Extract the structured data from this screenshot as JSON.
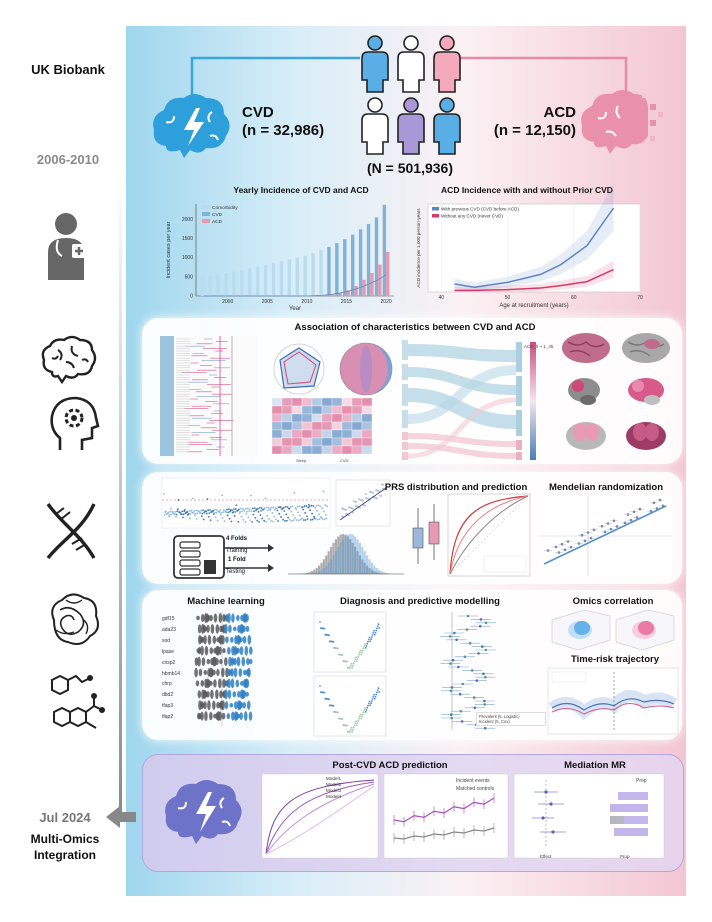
{
  "left_labels": {
    "source": "UK Biobank",
    "period_start": "2006-2010",
    "period_end": "Jul 2024",
    "integration": "Multi-Omics\nIntegration"
  },
  "cohort": {
    "cvd_label": "CVD",
    "cvd_n": "(n = 32,986)",
    "acd_label": "ACD",
    "acd_n": "(n = 12,150)",
    "total_n": "(N = 501,936)"
  },
  "panel_titles": {
    "yearly_incidence": "Yearly Incidence of CVD and ACD",
    "acd_incidence": "ACD Incidence with and without Prior CVD",
    "association": "Association of characteristics  between CVD and ACD",
    "prs": "PRS distribution and prediction",
    "mr": "Mendelian randomization",
    "ml": "Machine learning",
    "diagnosis": "Diagnosis and predictive modelling",
    "omics": "Omics correlation",
    "time_risk": "Time-risk trajectory",
    "post_cvd": "Post-CVD ACD prediction",
    "mediation": "Mediation MR"
  },
  "kfold": {
    "train_label": "4 Folds",
    "train_sub": "Training",
    "test_label": "1 Fold",
    "test_sub": "Testing"
  },
  "colors": {
    "cvd": "#7fb3d8",
    "acd": "#e69ab0",
    "comorbidity": "#b9dcef",
    "blue_line": "#5d86c8",
    "red_line": "#d63b6c",
    "purple": "#9b8dd0"
  },
  "chart_data": [
    {
      "type": "bar",
      "title": "Yearly Incidence of CVD and ACD",
      "xlabel": "Year",
      "ylabel": "Incident cases per year",
      "x_ticks": [
        "2000",
        "2005",
        "2010",
        "2015",
        "2020"
      ],
      "y_ticks": [
        "0",
        "500",
        "1000",
        "1500",
        "2000"
      ],
      "ylim": [
        0,
        2400
      ],
      "legend": [
        "Comorbidity",
        "CVD",
        "ACD"
      ],
      "legend_position": "top-left",
      "x": [
        1997,
        1998,
        1999,
        2000,
        2001,
        2002,
        2003,
        2004,
        2005,
        2006,
        2007,
        2008,
        2009,
        2010,
        2011,
        2012,
        2013,
        2014,
        2015,
        2016,
        2017,
        2018,
        2019,
        2020
      ],
      "series": [
        {
          "name": "CVD",
          "values": [
            480,
            520,
            560,
            600,
            640,
            680,
            720,
            760,
            800,
            850,
            900,
            950,
            1000,
            1050,
            1120,
            1200,
            1280,
            1380,
            1480,
            1600,
            1740,
            1880,
            2050,
            2380
          ]
        },
        {
          "name": "ACD",
          "values": [
            0,
            0,
            0,
            0,
            0,
            0,
            0,
            0,
            0,
            0,
            0,
            0,
            0,
            0,
            0,
            20,
            40,
            80,
            150,
            260,
            420,
            600,
            820,
            1150
          ]
        },
        {
          "name": "Comorbidity",
          "values": [
            0,
            0,
            0,
            0,
            0,
            0,
            0,
            0,
            0,
            0,
            0,
            0,
            0,
            0,
            10,
            20,
            40,
            70,
            110,
            170,
            240,
            330,
            420,
            560
          ]
        }
      ]
    },
    {
      "type": "line",
      "title": "ACD Incidence with and without Prior CVD",
      "xlabel": "Age at recruitment (years)",
      "ylabel": "ACD incidence per 1,000 person-years",
      "x_ticks": [
        "40",
        "50",
        "60",
        "70"
      ],
      "xlim": [
        38,
        70
      ],
      "legend": [
        "With previous CVD (CVD before ACD)",
        "Without any CVD (never CVD)"
      ],
      "legend_position": "top-left",
      "series": [
        {
          "name": "With previous CVD (CVD before ACD)",
          "x": [
            42,
            45,
            50,
            55,
            58,
            62,
            66
          ],
          "values": [
            1.0,
            0.6,
            1.2,
            2.2,
            3.4,
            5.8,
            10.5
          ]
        },
        {
          "name": "Without any CVD (never CVD)",
          "x": [
            42,
            45,
            50,
            55,
            58,
            62,
            66
          ],
          "values": [
            0.2,
            0.2,
            0.3,
            0.5,
            0.8,
            1.3,
            2.8
          ]
        }
      ]
    }
  ],
  "mini_text": {
    "mr_axis_label": "ACD_lt ~ 1_45",
    "legend_prev": "Prevalent (5, Logistic)",
    "legend_inc": "Incident (5, Cox)",
    "ml_genes": [
      "gdf15",
      "ada23",
      "sod",
      "lpase",
      "crisp2",
      "hbmb14",
      "chrp",
      "dbd2",
      "tfap3",
      "tfap2"
    ],
    "post_legend": [
      "Incident events",
      "Matched controls"
    ],
    "post_models": [
      "Model1",
      "Model2",
      "Model3",
      "Model4"
    ],
    "med_xlabel": "Effect",
    "med_xlabel2": "Prop",
    "med_legend": "Prop",
    "heat_labels": [
      "Sleep",
      "CVD"
    ]
  }
}
